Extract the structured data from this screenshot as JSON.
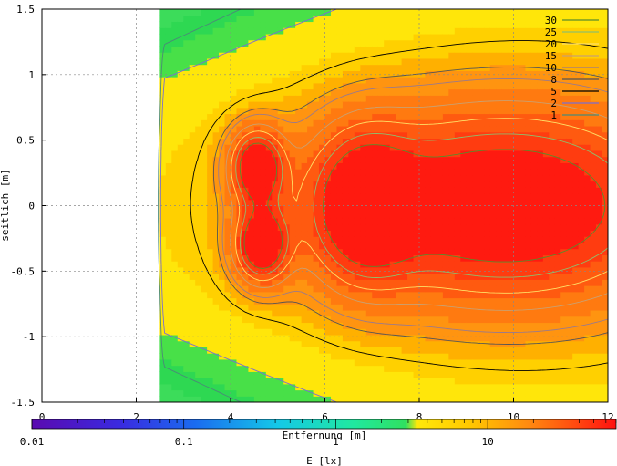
{
  "chart_data": {
    "type": "heatmap",
    "title": "",
    "xlabel": "Entfernung [m]",
    "ylabel": "seitlich [m]",
    "xlim": [
      0,
      12
    ],
    "ylim": [
      -1.5,
      1.5
    ],
    "xticks": [
      "0",
      "2",
      "4",
      "6",
      "8",
      "10",
      "12"
    ],
    "yticks": [
      "1.5",
      "1",
      "0.5",
      "0",
      "-0.5",
      "-1",
      "-1.5"
    ],
    "grid": true,
    "colorbar": {
      "label": "E [lx]",
      "scale": "log",
      "range": [
        0.01,
        70
      ],
      "ticks": [
        "0.01",
        "0.1",
        "1",
        "10"
      ]
    },
    "contour_levels": [
      {
        "label": "30",
        "value": 30,
        "color": "#5a8c2a"
      },
      {
        "label": "25",
        "value": 25,
        "color": "#8fbf6a"
      },
      {
        "label": "20",
        "value": 20,
        "color": "#ffe066"
      },
      {
        "label": "15",
        "value": 15,
        "color": "#caa070"
      },
      {
        "label": "10",
        "value": 10,
        "color": "#9c7a8a"
      },
      {
        "label": "8",
        "value": 8,
        "color": "#555555"
      },
      {
        "label": "5",
        "value": 5,
        "color": "#000000"
      },
      {
        "label": "2",
        "value": 2,
        "color": "#7a6fd0"
      },
      {
        "label": "1",
        "value": 1,
        "color": "#4a8a78"
      }
    ],
    "illuminance_field": {
      "description_points": [
        {
          "x": 4.5,
          "y": 0.3,
          "value": 30
        },
        {
          "x": 4.6,
          "y": -0.3,
          "value": 30
        },
        {
          "x": 6.8,
          "y": 0.0,
          "value": 25
        },
        {
          "x": 10.5,
          "y": 0.3,
          "value": 30
        },
        {
          "x": 2.8,
          "y": 0.0,
          "value": 2
        },
        {
          "x": 3.0,
          "y": 1.0,
          "value": 0.6
        }
      ]
    }
  }
}
